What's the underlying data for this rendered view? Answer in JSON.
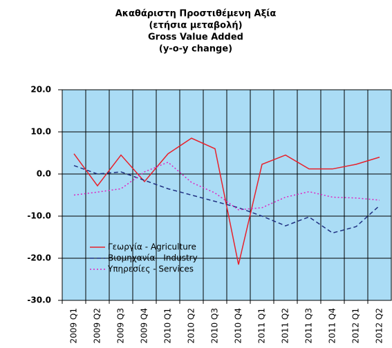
{
  "chart_data": {
    "type": "line",
    "title_lines": [
      "Ακαθάριστη Προστιθέμενη Αξία",
      "(ετήσια μεταβολή)",
      "Gross Value Added",
      "(y-o-y change)"
    ],
    "categories": [
      "2009 Q1",
      "2009 Q2",
      "2009 Q3",
      "2009 Q4",
      "2010 Q1",
      "2010 Q2",
      "2010 Q3",
      "2010 Q4",
      "2011 Q1",
      "2011 Q2",
      "2011 Q3",
      "2011 Q4",
      "2012 Q1",
      "2012 Q2"
    ],
    "series": [
      {
        "name": "Γεωργία - Agriculture",
        "color": "#e8202a",
        "dash": "solid",
        "values": [
          4.8,
          -2.8,
          4.5,
          -1.8,
          4.8,
          8.5,
          6.0,
          -21.5,
          2.3,
          4.5,
          1.2,
          1.2,
          2.3,
          4.0
        ]
      },
      {
        "name": "Βιομηχανία - Industry",
        "color": "#1f2f80",
        "dash": "dashed",
        "values": [
          2.0,
          0.0,
          0.5,
          -1.5,
          -3.5,
          -5.0,
          -6.5,
          -8.0,
          -10.0,
          -12.3,
          -10.2,
          -14.0,
          -12.5,
          -7.5
        ]
      },
      {
        "name": "Υπηρεσίες - Services",
        "color": "#e020c0",
        "dash": "dotted",
        "values": [
          -5.0,
          -4.3,
          -3.5,
          0.5,
          2.8,
          -2.0,
          -4.5,
          -8.5,
          -8.0,
          -5.5,
          -4.2,
          -5.5,
          -5.7,
          -6.2
        ]
      }
    ],
    "ylim": [
      -30,
      20
    ],
    "yticks": [
      {
        "value": -30,
        "label": "-30.0"
      },
      {
        "value": -20,
        "label": "-20.0"
      },
      {
        "value": -10,
        "label": "-10.0"
      },
      {
        "value": 0,
        "label": "0.0"
      },
      {
        "value": 10,
        "label": "10.0"
      },
      {
        "value": 20,
        "label": "20.0"
      }
    ],
    "grid": true,
    "legend": "lower-left",
    "background": "#aadcf5"
  }
}
